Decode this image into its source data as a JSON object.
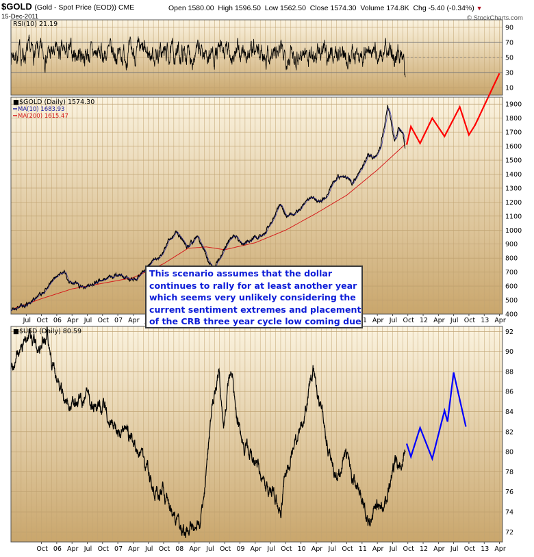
{
  "header": {
    "symbol": "$GOLD",
    "description": "(Gold - Spot Price (EOD)) CME",
    "date": "15-Dec-2011",
    "open_label": "Open",
    "open": "1580.00",
    "high_label": "High",
    "high": "1596.50",
    "low_label": "Low",
    "low": "1562.50",
    "close_label": "Close",
    "close": "1574.30",
    "volume_label": "Volume",
    "volume": "174.8K",
    "chg_label": "Chg",
    "chg": "-5.40 (-0.34%)",
    "chg_arrow": "▼",
    "watermark": "© StockCharts.com"
  },
  "annotation": {
    "lines": [
      "This scenario assumes that the dollar",
      "continues to rally for at least another year",
      "which seems very unlikely considering the",
      "current sentiment extremes and placement",
      "of the CRB three year cycle low coming due."
    ]
  },
  "colors": {
    "panel_top": "#fbf3df",
    "panel_bottom": "#c9a66c",
    "price": "#000000",
    "ma10": "#1a1aa0",
    "ma200": "#d51a1a",
    "gold_projection": "#ff0000",
    "usd_projection": "#0000ff",
    "annotation_text": "#0d1dd8"
  },
  "chart_data": [
    {
      "type": "line",
      "name": "rsi-panel",
      "legend": "RSI(10) 21.19",
      "ylim": [
        0,
        100
      ],
      "yticks": [
        10,
        30,
        50,
        70,
        90
      ],
      "reference_lines": [
        30,
        70
      ],
      "last_value": 21.19
    },
    {
      "type": "line",
      "name": "gold-panel",
      "legend": [
        {
          "name": "$GOLD (Daily) 1574.30",
          "color": "#000000"
        },
        {
          "name": "MA(10) 1683.93",
          "color": "#1a1aa0"
        },
        {
          "name": "MA(200) 1615.47",
          "color": "#d51a1a"
        }
      ],
      "ylim": [
        400,
        1950
      ],
      "yticks": [
        400,
        500,
        600,
        700,
        800,
        900,
        1000,
        1100,
        1200,
        1300,
        1400,
        1500,
        1600,
        1700,
        1800,
        1900
      ],
      "x_tick_labels": [
        "Jul",
        "Oct",
        "06",
        "Apr",
        "Jul",
        "Oct",
        "07",
        "Apr",
        "Jul",
        "Oct",
        "08",
        "Apr",
        "Jul",
        "Oct",
        "09",
        "Apr",
        "Jul",
        "Oct",
        "10",
        "Apr",
        "Jul",
        "Oct",
        "11",
        "Apr",
        "Jul",
        "Oct",
        "12",
        "Apr",
        "Jul",
        "Oct",
        "13",
        "Apr"
      ],
      "price_anchors": [
        [
          2005.5,
          430
        ],
        [
          2005.75,
          470
        ],
        [
          2006.0,
          545
        ],
        [
          2006.2,
          640
        ],
        [
          2006.37,
          705
        ],
        [
          2006.5,
          620
        ],
        [
          2006.7,
          600
        ],
        [
          2006.9,
          630
        ],
        [
          2007.0,
          640
        ],
        [
          2007.2,
          680
        ],
        [
          2007.4,
          660
        ],
        [
          2007.55,
          650
        ],
        [
          2007.7,
          720
        ],
        [
          2007.9,
          800
        ],
        [
          2008.0,
          860
        ],
        [
          2008.1,
          930
        ],
        [
          2008.2,
          990
        ],
        [
          2008.28,
          940
        ],
        [
          2008.4,
          880
        ],
        [
          2008.55,
          950
        ],
        [
          2008.65,
          860
        ],
        [
          2008.75,
          760
        ],
        [
          2008.82,
          720
        ],
        [
          2008.92,
          800
        ],
        [
          2009.0,
          870
        ],
        [
          2009.15,
          960
        ],
        [
          2009.3,
          890
        ],
        [
          2009.45,
          940
        ],
        [
          2009.6,
          950
        ],
        [
          2009.75,
          1050
        ],
        [
          2009.9,
          1180
        ],
        [
          2010.0,
          1100
        ],
        [
          2010.15,
          1110
        ],
        [
          2010.3,
          1190
        ],
        [
          2010.45,
          1240
        ],
        [
          2010.55,
          1190
        ],
        [
          2010.7,
          1270
        ],
        [
          2010.85,
          1380
        ],
        [
          2011.0,
          1390
        ],
        [
          2011.08,
          1330
        ],
        [
          2011.25,
          1450
        ],
        [
          2011.35,
          1540
        ],
        [
          2011.45,
          1510
        ],
        [
          2011.55,
          1600
        ],
        [
          2011.62,
          1760
        ],
        [
          2011.67,
          1900
        ],
        [
          2011.72,
          1770
        ],
        [
          2011.78,
          1620
        ],
        [
          2011.85,
          1720
        ],
        [
          2011.92,
          1700
        ],
        [
          2011.96,
          1574
        ]
      ],
      "ma200_anchors": [
        [
          2005.55,
          440
        ],
        [
          2006.0,
          510
        ],
        [
          2006.5,
          580
        ],
        [
          2007.0,
          620
        ],
        [
          2007.5,
          660
        ],
        [
          2008.0,
          760
        ],
        [
          2008.4,
          870
        ],
        [
          2008.7,
          880
        ],
        [
          2009.0,
          860
        ],
        [
          2009.5,
          910
        ],
        [
          2010.0,
          1000
        ],
        [
          2010.5,
          1120
        ],
        [
          2011.0,
          1250
        ],
        [
          2011.5,
          1430
        ],
        [
          2011.96,
          1615
        ]
      ],
      "projection": {
        "color": "#ff0000",
        "points": [
          [
            2011.98,
            1610
          ],
          [
            2012.05,
            1740
          ],
          [
            2012.2,
            1620
          ],
          [
            2012.4,
            1800
          ],
          [
            2012.6,
            1670
          ],
          [
            2012.85,
            1880
          ],
          [
            2013.0,
            1680
          ],
          [
            2013.1,
            1750
          ],
          [
            2013.5,
            2120
          ]
        ]
      }
    },
    {
      "type": "line",
      "name": "usd-panel",
      "legend": "$USD (Daily) 80.59",
      "ylim": [
        71,
        92.5
      ],
      "yticks": [
        72,
        74,
        76,
        78,
        80,
        82,
        84,
        86,
        88,
        90,
        92
      ],
      "x_tick_labels": [
        "Oct",
        "06",
        "Apr",
        "Jul",
        "Oct",
        "07",
        "Apr",
        "Jul",
        "Oct",
        "08",
        "Apr",
        "Jul",
        "Oct",
        "09",
        "Apr",
        "Jul",
        "Oct",
        "10",
        "Apr",
        "Jul",
        "Oct",
        "11",
        "Apr",
        "Jul",
        "Oct",
        "12",
        "Apr",
        "Jul",
        "Oct",
        "13",
        "Apr"
      ],
      "price_anchors": [
        [
          2005.5,
          88.5
        ],
        [
          2005.65,
          90
        ],
        [
          2005.8,
          91.8
        ],
        [
          2005.9,
          90.6
        ],
        [
          2006.0,
          90
        ],
        [
          2006.1,
          91.5
        ],
        [
          2006.18,
          89
        ],
        [
          2006.3,
          86
        ],
        [
          2006.45,
          85
        ],
        [
          2006.6,
          84.8
        ],
        [
          2006.75,
          85.5
        ],
        [
          2006.9,
          84
        ],
        [
          2007.0,
          84.5
        ],
        [
          2007.15,
          83.2
        ],
        [
          2007.3,
          82
        ],
        [
          2007.45,
          81.5
        ],
        [
          2007.6,
          80.3
        ],
        [
          2007.75,
          78
        ],
        [
          2007.9,
          76
        ],
        [
          2008.0,
          75.8
        ],
        [
          2008.15,
          73.5
        ],
        [
          2008.3,
          72
        ],
        [
          2008.45,
          72.5
        ],
        [
          2008.6,
          73
        ],
        [
          2008.7,
          78
        ],
        [
          2008.8,
          85
        ],
        [
          2008.9,
          88
        ],
        [
          2008.98,
          82
        ],
        [
          2009.05,
          86
        ],
        [
          2009.1,
          88.5
        ],
        [
          2009.2,
          83.5
        ],
        [
          2009.35,
          80
        ],
        [
          2009.5,
          79
        ],
        [
          2009.65,
          77
        ],
        [
          2009.8,
          75.5
        ],
        [
          2009.92,
          74.5
        ],
        [
          2010.0,
          78
        ],
        [
          2010.15,
          80.8
        ],
        [
          2010.3,
          83
        ],
        [
          2010.4,
          87
        ],
        [
          2010.45,
          88.2
        ],
        [
          2010.55,
          85
        ],
        [
          2010.65,
          82
        ],
        [
          2010.75,
          79
        ],
        [
          2010.85,
          77
        ],
        [
          2010.95,
          79.5
        ],
        [
          2011.0,
          80
        ],
        [
          2011.1,
          77
        ],
        [
          2011.25,
          75.5
        ],
        [
          2011.35,
          73
        ],
        [
          2011.5,
          74.5
        ],
        [
          2011.6,
          74
        ],
        [
          2011.7,
          76.5
        ],
        [
          2011.78,
          79
        ],
        [
          2011.88,
          78
        ],
        [
          2011.96,
          80.59
        ]
      ],
      "projection": {
        "color": "#0000ff",
        "points": [
          [
            2011.98,
            80.8
          ],
          [
            2012.05,
            79.5
          ],
          [
            2012.2,
            82.4
          ],
          [
            2012.4,
            79.3
          ],
          [
            2012.6,
            84.1
          ],
          [
            2012.65,
            83
          ],
          [
            2012.75,
            87.9
          ],
          [
            2012.95,
            82.5
          ]
        ]
      }
    }
  ]
}
